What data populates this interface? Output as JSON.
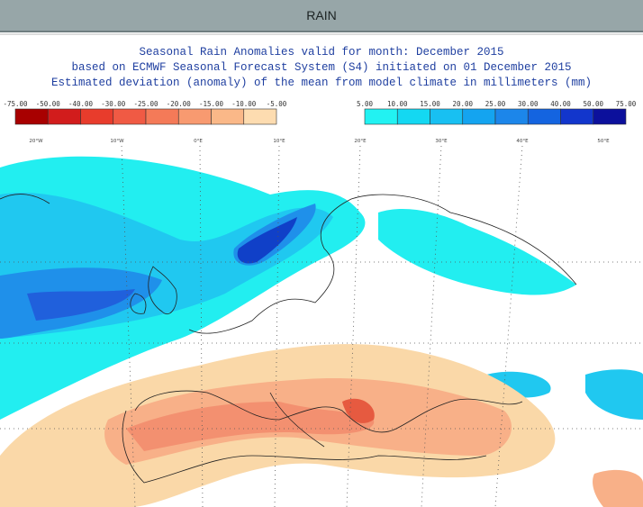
{
  "header": {
    "title": "RAIN"
  },
  "map": {
    "title_lines": [
      "Seasonal Rain Anomalies valid for month: December 2015",
      "based on ECMWF Seasonal Forecast System (S4) initiated on 01 December 2015",
      "Estimated deviation (anomaly) of the mean from model climate in millimeters (mm)"
    ],
    "legend_negative": [
      "-75.00",
      "-50.00",
      "-40.00",
      "-30.00",
      "-25.00",
      "-20.00",
      "-15.00",
      "-10.00",
      "-5.00"
    ],
    "legend_positive": [
      "5.00",
      "10.00",
      "15.00",
      "20.00",
      "25.00",
      "30.00",
      "40.00",
      "50.00",
      "75.00"
    ],
    "longitudes": [
      "20°W",
      "10°W",
      "0°E",
      "10°E",
      "20°E",
      "30°E",
      "40°E",
      "50°E"
    ]
  }
}
